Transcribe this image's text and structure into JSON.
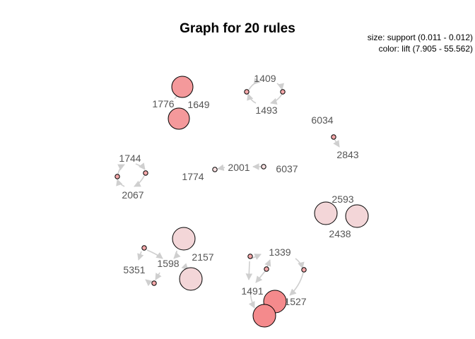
{
  "title": "Graph for 20 rules",
  "legend": {
    "size": "size: support (0.011 - 0.012)",
    "color": "color: lift (7.905 - 55.562)"
  },
  "colors": {
    "rule_high_lift": "#f4999b",
    "rule_low_lift": "#f3d6d8",
    "item_node": "#f6c3c5",
    "edge": "#cfcfcf",
    "label": "#555555"
  },
  "items": [
    {
      "name": "1776"
    },
    {
      "name": "1649"
    },
    {
      "name": "1409"
    },
    {
      "name": "1493"
    },
    {
      "name": "6034"
    },
    {
      "name": "2843"
    },
    {
      "name": "1744"
    },
    {
      "name": "2067"
    },
    {
      "name": "1774"
    },
    {
      "name": "2001"
    },
    {
      "name": "6037"
    },
    {
      "name": "2593"
    },
    {
      "name": "2438"
    },
    {
      "name": "5351"
    },
    {
      "name": "1598"
    },
    {
      "name": "2157"
    },
    {
      "name": "1339"
    },
    {
      "name": "1491"
    },
    {
      "name": "1527"
    }
  ]
}
